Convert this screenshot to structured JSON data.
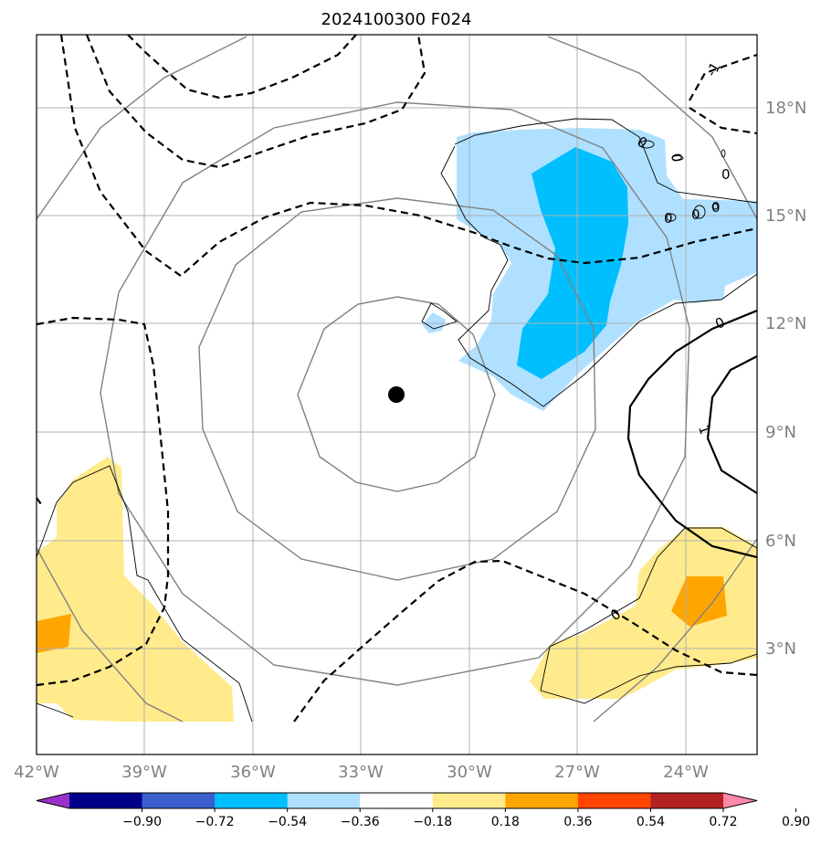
{
  "title": "2024100300 F024",
  "x_ticks": [
    "42°W",
    "39°W",
    "36°W",
    "33°W",
    "30°W",
    "27°W",
    "24°W"
  ],
  "y_ticks": [
    "18°N",
    "15°N",
    "12°N",
    "9°N",
    "6°N",
    "3°N"
  ],
  "contour_labels": [
    "-1",
    "0",
    "0",
    "0",
    "0",
    "0",
    "0",
    "0",
    "1",
    "0"
  ],
  "colorbar": {
    "ticks": [
      "−0.90",
      "−0.72",
      "−0.54",
      "−0.36",
      "−0.18",
      "0.18",
      "0.36",
      "0.54",
      "0.72",
      "0.90"
    ],
    "colors": [
      "#9932cc",
      "#00008b",
      "#3a5fcd",
      "#00bfff",
      "#b0e0ff",
      "#ffffff",
      "#ffeb8c",
      "#ffa500",
      "#ff4500",
      "#b22222",
      "#ff88aa"
    ]
  },
  "map": {
    "extent": {
      "lon": [
        -42,
        -22
      ],
      "lat": [
        1,
        20
      ]
    },
    "center_marker": {
      "lon": -32,
      "lat": 10
    }
  }
}
